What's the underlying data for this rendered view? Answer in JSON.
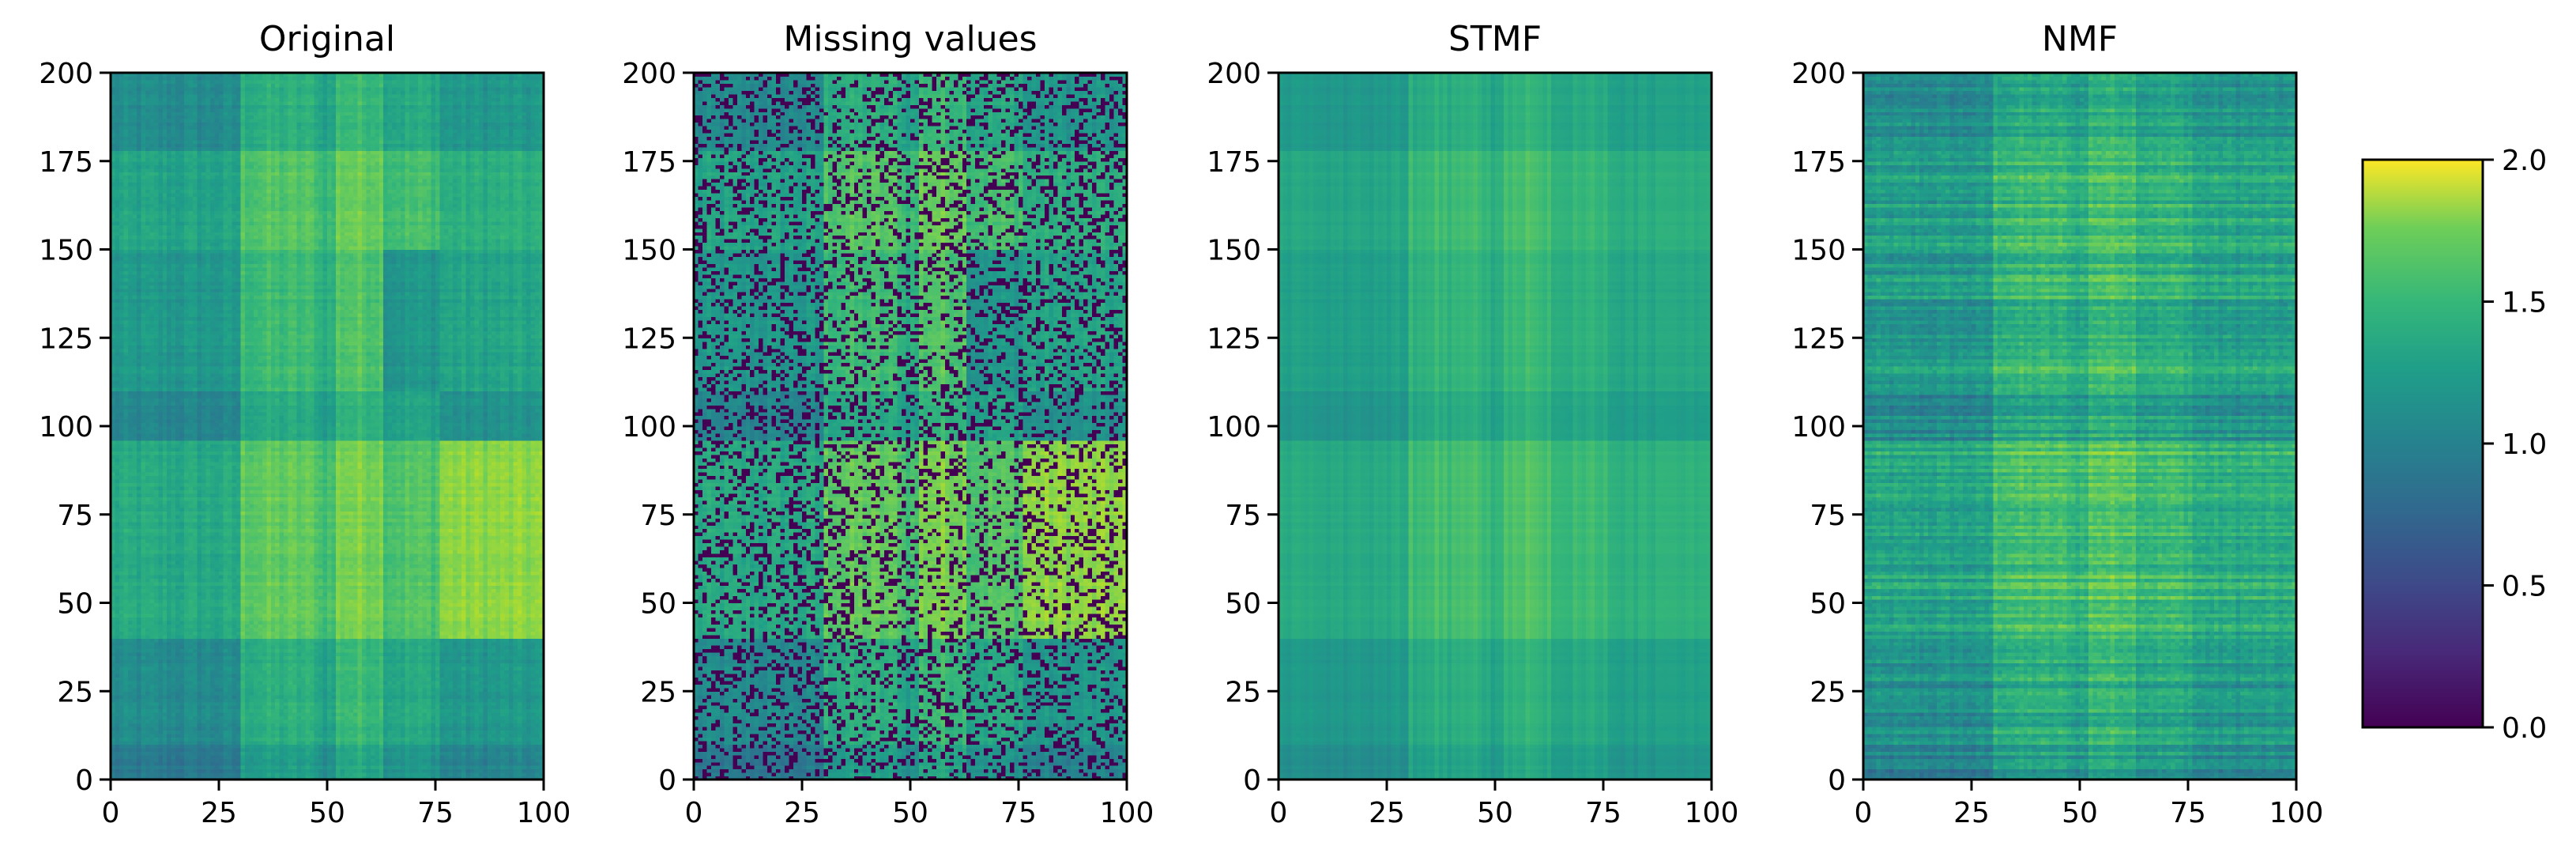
{
  "figure": {
    "panels": [
      {
        "title": "Original"
      },
      {
        "title": "Missing values"
      },
      {
        "title": "STMF"
      },
      {
        "title": "NMF"
      }
    ],
    "colorbar": {
      "colormap": "viridis",
      "ticks": [
        "0.0",
        "0.5",
        "1.0",
        "1.5",
        "2.0"
      ],
      "range": [
        0.0,
        2.0
      ],
      "colors": [
        "#440154",
        "#3b528b",
        "#21918c",
        "#5ec962",
        "#fde725"
      ]
    }
  },
  "chart_data": [
    {
      "type": "heatmap",
      "title": "Original",
      "xlabel": "",
      "ylabel": "",
      "xlim": [
        0,
        100
      ],
      "ylim": [
        0,
        200
      ],
      "xticks": [
        "0",
        "25",
        "50",
        "75",
        "100"
      ],
      "yticks": [
        "0",
        "25",
        "50",
        "75",
        "100",
        "125",
        "150",
        "175",
        "200"
      ],
      "colorbar_range": [
        0.0,
        2.0
      ],
      "approx_pattern": "block-structured values 0.5–2.0; brightest (≈1.9–2.0) near columns 30–75 and rows 50–95 and 150–175; right columns 75–100 bright around rows 40–90"
    },
    {
      "type": "heatmap",
      "title": "Missing values",
      "xlabel": "",
      "ylabel": "",
      "xlim": [
        0,
        100
      ],
      "ylim": [
        0,
        200
      ],
      "xticks": [
        "0",
        "25",
        "50",
        "75",
        "100"
      ],
      "yticks": [
        "0",
        "25",
        "50",
        "75",
        "100",
        "125",
        "150",
        "175",
        "200"
      ],
      "colorbar_range": [
        0.0,
        2.0
      ],
      "approx_pattern": "original matrix with roughly 25% of entries set to missing (shown as 0.0, dark purple), scattered randomly"
    },
    {
      "type": "heatmap",
      "title": "STMF",
      "xlabel": "",
      "ylabel": "",
      "xlim": [
        0,
        100
      ],
      "ylim": [
        0,
        200
      ],
      "xticks": [
        "0",
        "25",
        "50",
        "75",
        "100"
      ],
      "yticks": [
        "0",
        "25",
        "50",
        "75",
        "100",
        "125",
        "150",
        "175",
        "200"
      ],
      "colorbar_range": [
        0.0,
        2.0
      ],
      "approx_pattern": "smoothed reconstruction, mostly 0.9–1.5; brighter band rows 40–95, columns 40–65"
    },
    {
      "type": "heatmap",
      "title": "NMF",
      "xlabel": "",
      "ylabel": "",
      "xlim": [
        0,
        100
      ],
      "ylim": [
        0,
        200
      ],
      "xticks": [
        "0",
        "25",
        "50",
        "75",
        "100"
      ],
      "yticks": [
        "0",
        "25",
        "50",
        "75",
        "100",
        "125",
        "150",
        "175",
        "200"
      ],
      "colorbar_range": [
        0.0,
        2.0
      ],
      "approx_pattern": "noisy horizontal-stripe reconstruction, mostly 0.7–1.6; brighter around columns 30–75, rows 120–150"
    }
  ]
}
